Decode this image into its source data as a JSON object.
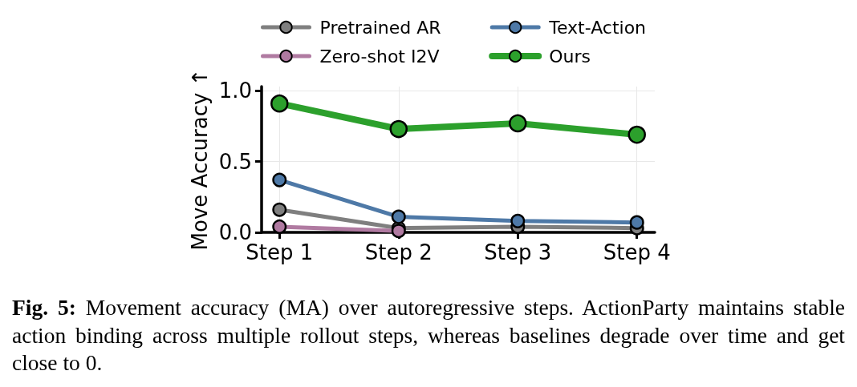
{
  "chart_data": {
    "type": "line",
    "categories": [
      "Step 1",
      "Step 2",
      "Step 3",
      "Step 4"
    ],
    "ylabel": "Move Accuracy ↑",
    "ylim": [
      0,
      1.03
    ],
    "yticks": [
      {
        "value": 0,
        "label": "0.0"
      },
      {
        "value": 0.5,
        "label": "0.5"
      },
      {
        "value": 1,
        "label": "1.0"
      }
    ],
    "series": [
      {
        "name": "Pretrained AR",
        "color": "#7f7f7f",
        "values": [
          0.16,
          0.03,
          0.04,
          0.03
        ]
      },
      {
        "name": "Zero-shot I2V",
        "color": "#b07aa1",
        "values": [
          0.04,
          0.01,
          null,
          null
        ]
      },
      {
        "name": "Text-Action",
        "color": "#4e79a7",
        "values": [
          0.37,
          0.11,
          0.08,
          0.07
        ]
      },
      {
        "name": "Ours",
        "color": "#2ca02c",
        "values": [
          0.91,
          0.73,
          0.77,
          0.69
        ]
      }
    ],
    "grid": true,
    "legend": "top",
    "marker": "circle",
    "line_style": "solid",
    "annotations": [
      "Fig. 5: Movement accuracy (MA) over autoregressive steps. ActionParty maintains stable action binding across multiple rollout steps, whereas baselines degrade over time and get close to 0."
    ]
  }
}
